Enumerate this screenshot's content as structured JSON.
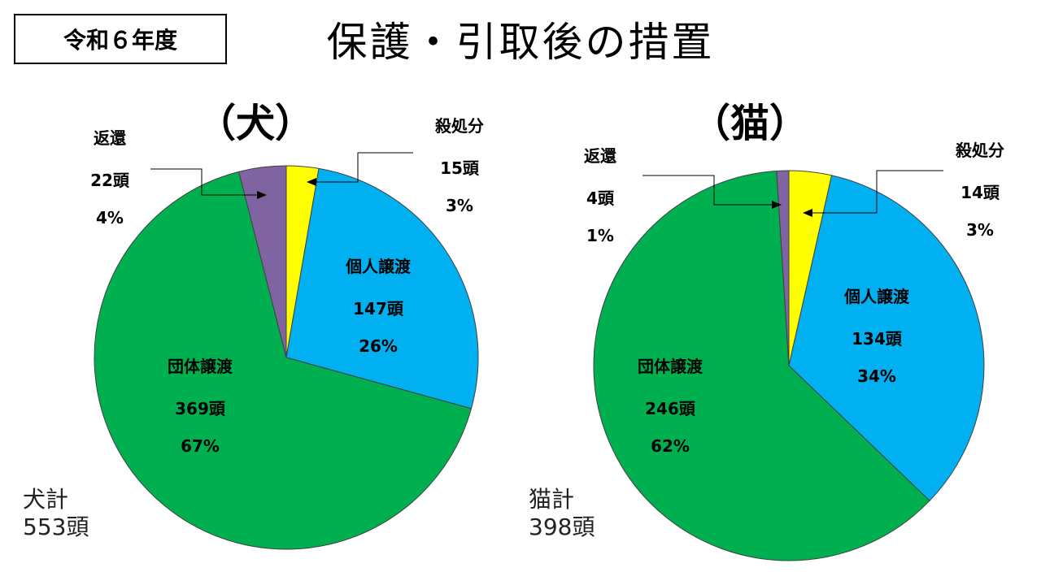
{
  "page": {
    "year_label": "令和６年度",
    "title": "保護・引取後の措置"
  },
  "colors": {
    "yellow": "#FFFF00",
    "blue": "#00B0F0",
    "green": "#00B050",
    "purple": "#8064A2",
    "border": "#404040"
  },
  "chart_data": [
    {
      "type": "pie",
      "title": "（犬）",
      "total_label": "犬計",
      "total_value": "553頭",
      "slices": [
        {
          "name": "殺処分",
          "count": "15頭",
          "value": 15,
          "percent": "3%",
          "color": "#FFFF00"
        },
        {
          "name": "個人譲渡",
          "count": "147頭",
          "value": 147,
          "percent": "26%",
          "color": "#00B0F0"
        },
        {
          "name": "団体譲渡",
          "count": "369頭",
          "value": 369,
          "percent": "67%",
          "color": "#00B050"
        },
        {
          "name": "返還",
          "count": "22頭",
          "value": 22,
          "percent": "4%",
          "color": "#8064A2"
        }
      ]
    },
    {
      "type": "pie",
      "title": "（猫）",
      "total_label": "猫計",
      "total_value": "398頭",
      "slices": [
        {
          "name": "殺処分",
          "count": "14頭",
          "value": 14,
          "percent": "3%",
          "color": "#FFFF00"
        },
        {
          "name": "個人譲渡",
          "count": "134頭",
          "value": 134,
          "percent": "34%",
          "color": "#00B0F0"
        },
        {
          "name": "団体譲渡",
          "count": "246頭",
          "value": 246,
          "percent": "62%",
          "color": "#00B050"
        },
        {
          "name": "返還",
          "count": "4頭",
          "value": 4,
          "percent": "1%",
          "color": "#8064A2"
        }
      ]
    }
  ]
}
